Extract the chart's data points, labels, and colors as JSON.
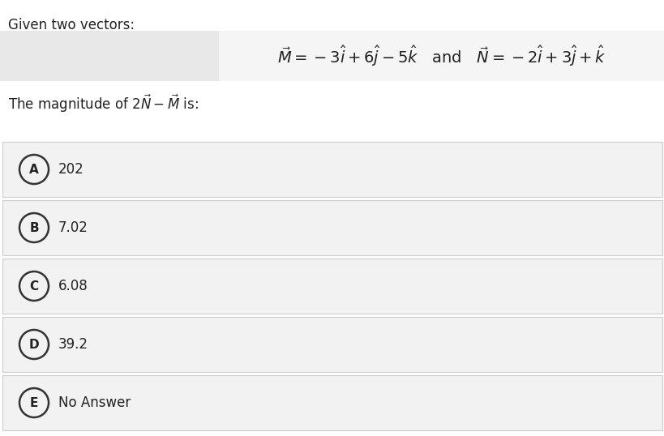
{
  "background_color": "#ffffff",
  "header_text": "Given two vectors:",
  "options": [
    {
      "letter": "A",
      "text": "202"
    },
    {
      "letter": "B",
      "text": "7.02"
    },
    {
      "letter": "C",
      "text": "6.08"
    },
    {
      "letter": "D",
      "text": "39.2"
    },
    {
      "letter": "E",
      "text": "No Answer"
    }
  ],
  "option_bg": "#f2f2f2",
  "option_border": "#cccccc",
  "left_panel_bg": "#e8e8e8",
  "right_panel_bg": "#f5f5f5",
  "circle_color": "#333333",
  "text_color": "#222222",
  "fig_width": 8.2,
  "fig_height": 5.38,
  "dpi": 100
}
